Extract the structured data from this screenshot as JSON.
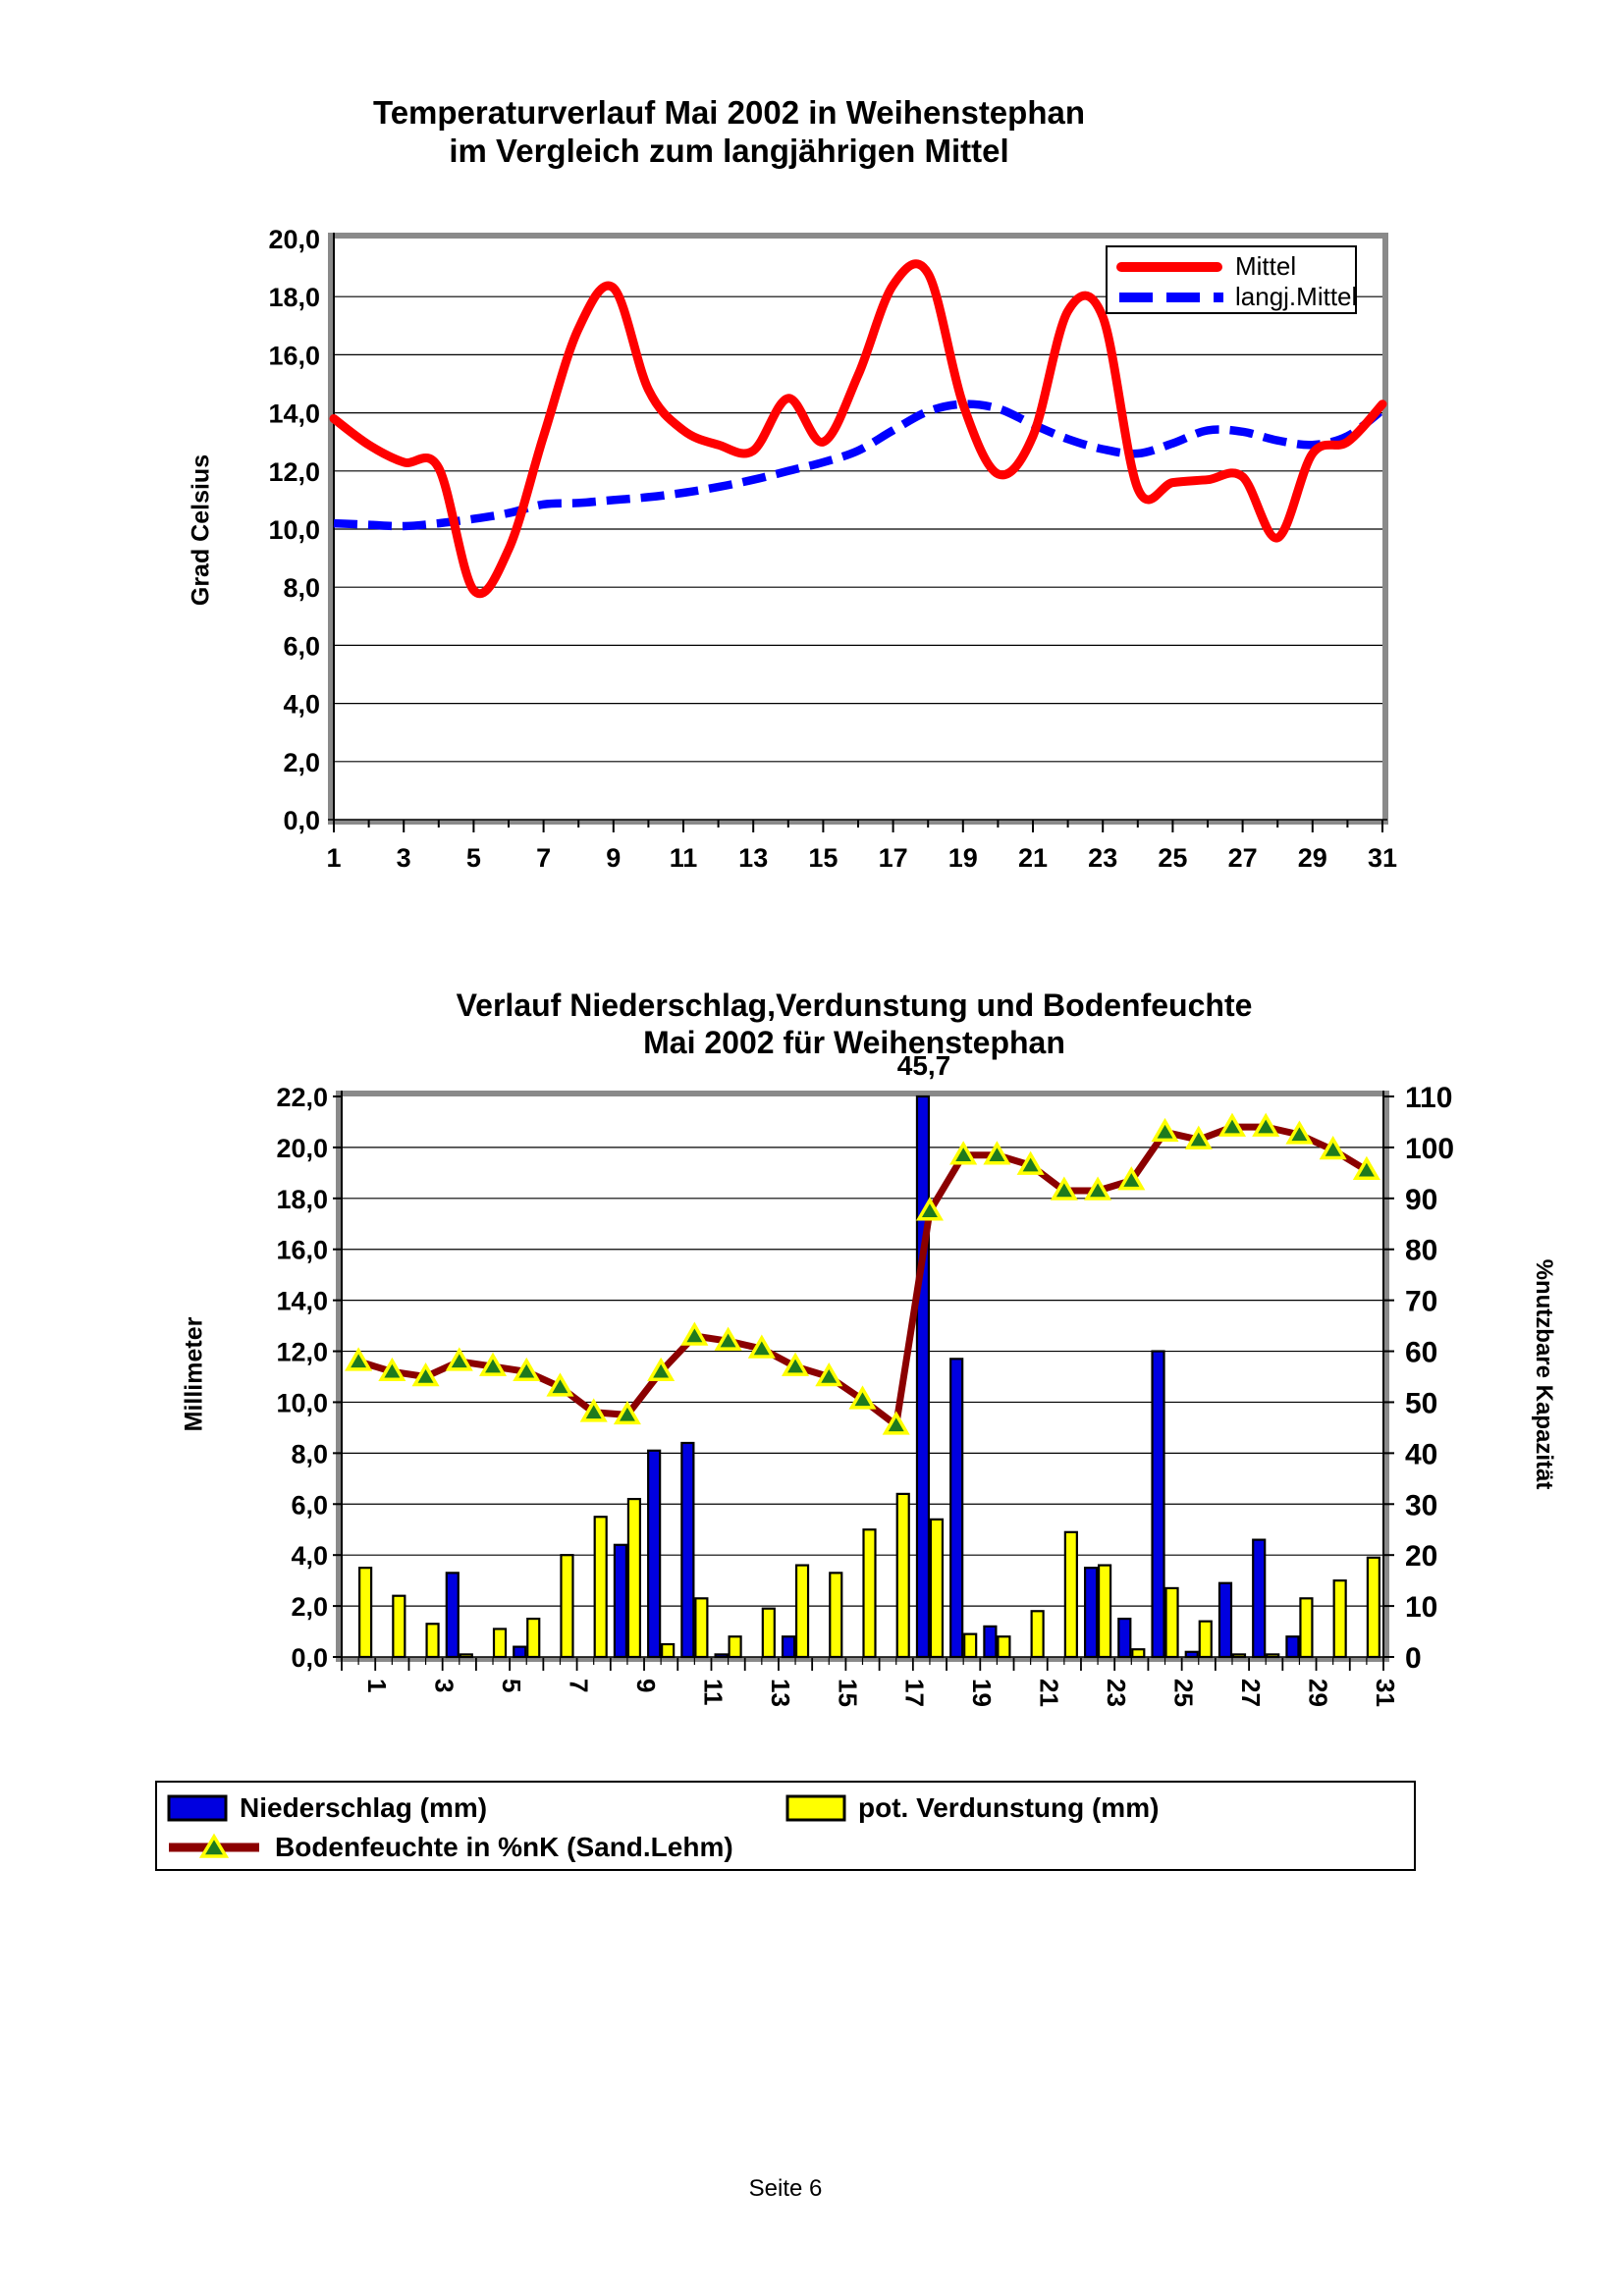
{
  "page": {
    "footer": "Seite 6"
  },
  "colors": {
    "mittel_line": "#ff0000",
    "langj_line": "#0000ff",
    "niederschlag_bar": "#0000e0",
    "verdunstung_bar": "#ffff00",
    "bodenfeuchte_line": "#8b0000",
    "marker_fill": "#1e7a1e",
    "marker_edge": "#ffff00",
    "frame_gray": "#8a8a8a"
  },
  "chart1": {
    "title_line1": "Temperaturverlauf Mai 2002 in Weihenstephan",
    "title_line2": "im Vergleich zum langjährigen Mittel",
    "y_axis_label": "Grad Celsius",
    "legend": {
      "mittel": "Mittel",
      "langj": "langj.Mittel"
    }
  },
  "chart2": {
    "title_line1": "Verlauf Niederschlag,Verdunstung und Bodenfeuchte",
    "title_line2": "Mai 2002 für Weihenstephan",
    "annotation": "45,7",
    "left_axis_label": "Millimeter",
    "right_axis_label": "%nutzbare Kapazität",
    "legend": {
      "niederschlag": "Niederschlag (mm)",
      "verdunstung": "pot. Verdunstung (mm)",
      "bodenfeuchte": "Bodenfeuchte in %nK (Sand.Lehm)"
    }
  },
  "chart_data": [
    {
      "type": "line",
      "title": "Temperaturverlauf Mai 2002 in Weihenstephan im Vergleich zum langjährigen Mittel",
      "xlabel": "",
      "ylabel": "Grad Celsius",
      "ylim": [
        0,
        20
      ],
      "grid": "horizontal",
      "legend_position": "top-right",
      "ytick_labels": [
        "0,0",
        "2,0",
        "4,0",
        "6,0",
        "8,0",
        "10,0",
        "12,0",
        "14,0",
        "16,0",
        "18,0",
        "20,0"
      ],
      "x": [
        1,
        2,
        3,
        4,
        5,
        6,
        7,
        8,
        9,
        10,
        11,
        12,
        13,
        14,
        15,
        16,
        17,
        18,
        19,
        20,
        21,
        22,
        23,
        24,
        25,
        26,
        27,
        28,
        29,
        30,
        31
      ],
      "xtick_labels": [
        "1",
        "3",
        "5",
        "7",
        "9",
        "11",
        "13",
        "15",
        "17",
        "19",
        "21",
        "23",
        "25",
        "27",
        "29",
        "31"
      ],
      "series": [
        {
          "name": "Mittel",
          "style": "solid",
          "color": "#ff0000",
          "values": [
            13.8,
            12.9,
            12.3,
            12.1,
            7.9,
            9.3,
            13.2,
            16.9,
            18.3,
            14.8,
            13.4,
            12.9,
            12.7,
            14.5,
            13.0,
            15.3,
            18.4,
            18.8,
            14.3,
            11.9,
            13.2,
            17.5,
            17.3,
            11.4,
            11.6,
            11.7,
            11.8,
            9.7,
            12.6,
            13.0,
            14.3
          ]
        },
        {
          "name": "langj.Mittel",
          "style": "dashed",
          "color": "#0000ff",
          "values": [
            10.2,
            10.15,
            10.1,
            10.2,
            10.35,
            10.55,
            10.85,
            10.9,
            11.0,
            11.1,
            11.25,
            11.45,
            11.7,
            12.0,
            12.3,
            12.7,
            13.4,
            14.05,
            14.3,
            14.15,
            13.6,
            13.1,
            12.75,
            12.6,
            12.95,
            13.4,
            13.35,
            13.05,
            12.9,
            13.2,
            14.1
          ]
        }
      ]
    },
    {
      "type": "bar",
      "title": "Verlauf Niederschlag,Verdunstung und Bodenfeuchte Mai 2002 für Weihenstephan",
      "ylabel_left": "Millimeter",
      "ylabel_right": "%nutzbare Kapazität",
      "ylim_left": [
        0,
        22
      ],
      "ylim_right": [
        0,
        110
      ],
      "grid": "horizontal",
      "ytick_labels_left": [
        "0,0",
        "2,0",
        "4,0",
        "6,0",
        "8,0",
        "10,0",
        "12,0",
        "14,0",
        "16,0",
        "18,0",
        "20,0",
        "22,0"
      ],
      "ytick_labels_right": [
        "0",
        "10",
        "20",
        "30",
        "40",
        "50",
        "60",
        "70",
        "80",
        "90",
        "100",
        "110"
      ],
      "categories": [
        1,
        2,
        3,
        4,
        5,
        6,
        7,
        8,
        9,
        10,
        11,
        12,
        13,
        14,
        15,
        16,
        17,
        18,
        19,
        20,
        21,
        22,
        23,
        24,
        25,
        26,
        27,
        28,
        29,
        30,
        31
      ],
      "xtick_labels": [
        "1",
        "3",
        "5",
        "7",
        "9",
        "11",
        "13",
        "15",
        "17",
        "19",
        "21",
        "23",
        "25",
        "27",
        "29",
        "31"
      ],
      "annotation": {
        "category": 18,
        "series": "Niederschlag (mm)",
        "text": "45,7",
        "value": 45.7
      },
      "series": [
        {
          "name": "Niederschlag (mm)",
          "type": "bar",
          "axis": "left",
          "color": "#0000e0",
          "values": [
            0,
            0,
            0,
            3.3,
            0,
            0.4,
            0,
            0,
            4.4,
            8.1,
            8.4,
            0.1,
            0,
            0.8,
            0,
            0,
            0,
            45.7,
            11.7,
            1.2,
            0,
            0,
            3.5,
            1.5,
            12.0,
            0.2,
            2.9,
            4.6,
            0.8,
            0,
            0
          ]
        },
        {
          "name": "pot. Verdunstung (mm)",
          "type": "bar",
          "axis": "left",
          "color": "#ffff00",
          "values": [
            3.5,
            2.4,
            1.3,
            0.1,
            1.1,
            1.5,
            4.0,
            5.5,
            6.2,
            0.5,
            2.3,
            0.8,
            1.9,
            3.6,
            3.3,
            5.0,
            6.4,
            5.4,
            0.9,
            0.8,
            1.8,
            4.9,
            3.6,
            0.3,
            2.7,
            1.4,
            0.1,
            0.1,
            2.3,
            3.0,
            3.9
          ]
        },
        {
          "name": "Bodenfeuchte in %nK (Sand.Lehm)",
          "type": "line",
          "axis": "right",
          "color": "#8b0000",
          "marker": "triangle",
          "values": [
            58,
            56,
            55,
            58,
            57,
            56,
            53,
            48,
            47.5,
            56,
            63,
            62,
            60.5,
            57,
            55,
            50.5,
            45.5,
            87.5,
            98.5,
            98.5,
            96.5,
            91.5,
            91.5,
            93.5,
            103,
            101.5,
            104,
            104,
            102.5,
            99.5,
            95.5
          ]
        }
      ]
    }
  ]
}
